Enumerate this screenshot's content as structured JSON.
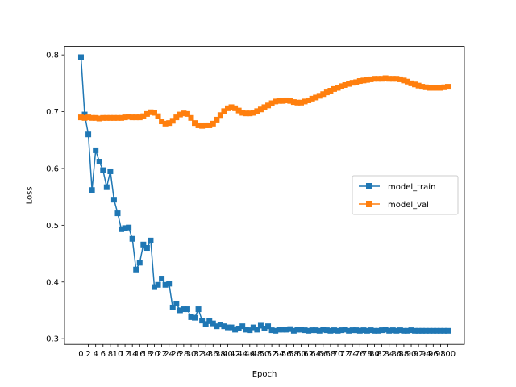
{
  "chart_data": {
    "type": "line",
    "title": "",
    "xlabel": "Epoch",
    "ylabel": "Loss",
    "xlim": [
      -4.5,
      104.5
    ],
    "ylim": [
      0.29,
      0.815
    ],
    "x_ticks": [
      0,
      2,
      4,
      6,
      8,
      10,
      12,
      14,
      16,
      18,
      20,
      22,
      24,
      26,
      28,
      30,
      32,
      34,
      36,
      38,
      40,
      42,
      44,
      46,
      48,
      50,
      52,
      54,
      56,
      58,
      60,
      62,
      64,
      66,
      68,
      70,
      72,
      74,
      76,
      78,
      80,
      82,
      84,
      86,
      88,
      90,
      92,
      94,
      96,
      98,
      100
    ],
    "y_ticks": [
      0.3,
      0.4,
      0.5,
      0.6,
      0.7,
      0.8
    ],
    "y_tick_labels": [
      "0.3",
      "0.4",
      "0.5",
      "0.6",
      "0.7",
      "0.8"
    ],
    "grid": false,
    "legend_position": "center-right",
    "series": [
      {
        "name": "model_train",
        "color": "#1f77b4",
        "marker": "square",
        "values": [
          0.796,
          0.695,
          0.66,
          0.562,
          0.632,
          0.612,
          0.597,
          0.567,
          0.595,
          0.545,
          0.521,
          0.493,
          0.495,
          0.496,
          0.476,
          0.422,
          0.434,
          0.466,
          0.46,
          0.473,
          0.391,
          0.395,
          0.406,
          0.395,
          0.397,
          0.355,
          0.362,
          0.35,
          0.352,
          0.352,
          0.338,
          0.337,
          0.352,
          0.332,
          0.326,
          0.331,
          0.327,
          0.322,
          0.325,
          0.322,
          0.32,
          0.32,
          0.316,
          0.318,
          0.322,
          0.316,
          0.315,
          0.32,
          0.316,
          0.323,
          0.318,
          0.322,
          0.315,
          0.314,
          0.316,
          0.316,
          0.316,
          0.317,
          0.314,
          0.316,
          0.316,
          0.315,
          0.314,
          0.315,
          0.315,
          0.314,
          0.316,
          0.315,
          0.314,
          0.315,
          0.314,
          0.315,
          0.316,
          0.314,
          0.315,
          0.315,
          0.314,
          0.315,
          0.314,
          0.315,
          0.314,
          0.314,
          0.315,
          0.316,
          0.314,
          0.315,
          0.314,
          0.315,
          0.314,
          0.314,
          0.315,
          0.314,
          0.314,
          0.314,
          0.314,
          0.314,
          0.314,
          0.314,
          0.314,
          0.314,
          0.314
        ]
      },
      {
        "name": "model_val",
        "color": "#ff7f0e",
        "marker": "square",
        "values": [
          0.69,
          0.689,
          0.69,
          0.689,
          0.689,
          0.688,
          0.689,
          0.689,
          0.689,
          0.689,
          0.689,
          0.689,
          0.69,
          0.691,
          0.69,
          0.69,
          0.69,
          0.692,
          0.696,
          0.699,
          0.698,
          0.692,
          0.683,
          0.679,
          0.68,
          0.684,
          0.69,
          0.695,
          0.697,
          0.696,
          0.689,
          0.68,
          0.676,
          0.675,
          0.676,
          0.676,
          0.679,
          0.686,
          0.694,
          0.701,
          0.706,
          0.708,
          0.706,
          0.702,
          0.698,
          0.697,
          0.697,
          0.698,
          0.701,
          0.704,
          0.708,
          0.711,
          0.715,
          0.718,
          0.719,
          0.719,
          0.72,
          0.719,
          0.717,
          0.716,
          0.716,
          0.718,
          0.72,
          0.723,
          0.725,
          0.728,
          0.731,
          0.734,
          0.737,
          0.74,
          0.742,
          0.745,
          0.747,
          0.749,
          0.751,
          0.752,
          0.754,
          0.755,
          0.756,
          0.757,
          0.758,
          0.758,
          0.758,
          0.759,
          0.758,
          0.758,
          0.758,
          0.757,
          0.755,
          0.753,
          0.75,
          0.748,
          0.746,
          0.744,
          0.743,
          0.742,
          0.742,
          0.742,
          0.742,
          0.743,
          0.744
        ]
      }
    ]
  }
}
